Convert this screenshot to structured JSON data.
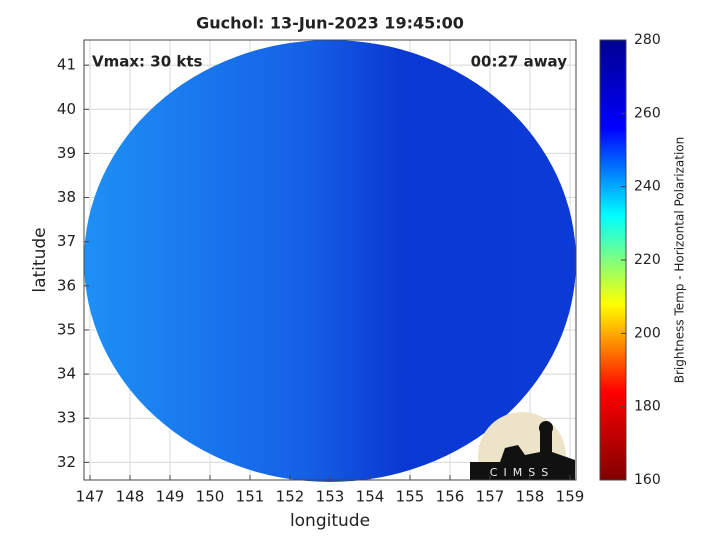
{
  "chart_data": {
    "type": "map",
    "title": "Guchol: 13-Jun-2023 19:45:00",
    "annotations": [
      "Vmax: 30 kts",
      "00:27 away"
    ],
    "logo": "CIMSS",
    "xlabel": "longitude",
    "ylabel": "latitude",
    "xlim": [
      146.85,
      159.15
    ],
    "xticks": [
      147,
      148,
      149,
      150,
      151,
      152,
      153,
      154,
      155,
      156,
      157,
      158,
      159
    ],
    "ylim": [
      31.6,
      41.57
    ],
    "yticks": [
      32,
      33,
      34,
      35,
      36,
      37,
      38,
      39,
      40,
      41
    ],
    "grid": true,
    "colorbar": {
      "label": "Brightness Temp - Horizontal Polarization",
      "lim": [
        160,
        280
      ],
      "ticks": [
        160,
        180,
        200,
        220,
        240,
        260,
        280
      ],
      "colors": [
        "#800000",
        "#ff0000",
        "#ffff00",
        "#00ffff",
        "#0000ff",
        "#00008f"
      ]
    }
  }
}
